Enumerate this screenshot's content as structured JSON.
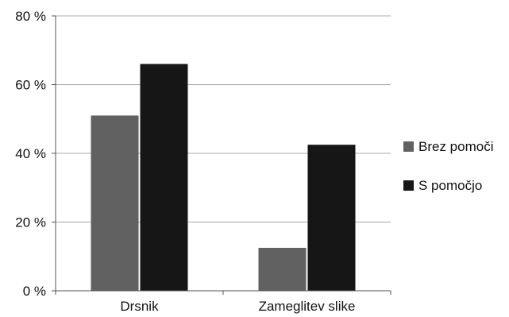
{
  "chart_data": {
    "type": "bar",
    "categories": [
      "Drsnik",
      "Zameglitev slike"
    ],
    "series": [
      {
        "name": "Brez pomoči",
        "values": [
          51,
          12.5
        ],
        "color": "#616161"
      },
      {
        "name": "S pomočjo",
        "values": [
          66,
          42.5
        ],
        "color": "#161616"
      }
    ],
    "ylim": [
      0,
      80
    ],
    "yticks": [
      0,
      20,
      40,
      60,
      80
    ],
    "ytick_labels": [
      "0 %",
      "20 %",
      "40 %",
      "60 %",
      "80 %"
    ],
    "grid": true,
    "legend_position": "right"
  }
}
